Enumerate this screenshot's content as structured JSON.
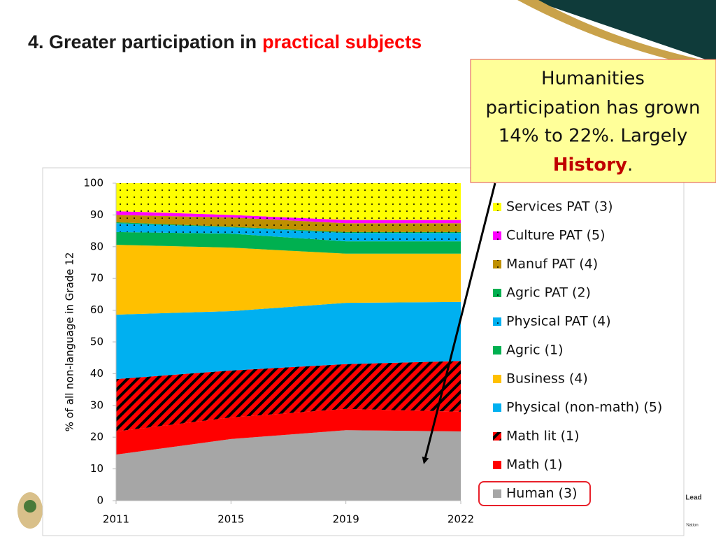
{
  "title": {
    "prefix": "4. Greater participation in",
    "highlight": "practical subjects"
  },
  "callout": {
    "lines": [
      "Humanities",
      "participation has grown",
      "14% to 22%. Largely"
    ],
    "emphasis": "History",
    "end": "."
  },
  "footer": {
    "logo_word": "Lead",
    "logo_sub": "Nation"
  },
  "chart_data": {
    "type": "stacked-area",
    "y_label": "% of all non-language in Grade 12",
    "categories": [
      "2011",
      "2015",
      "2019",
      "2022"
    ],
    "ylim": [
      0,
      100
    ],
    "yticks": [
      0,
      10,
      20,
      30,
      40,
      50,
      60,
      70,
      80,
      90,
      100
    ],
    "highlighted_series": "Human (3)",
    "series": [
      {
        "name": "Human (3)",
        "color": "#a6a6a6",
        "pattern": "solid",
        "values": [
          14.5,
          19.4,
          22.2,
          21.8
        ]
      },
      {
        "name": "Math (1)",
        "color": "#ff0000",
        "pattern": "solid",
        "values": [
          7.3,
          6.8,
          6.7,
          6.2
        ]
      },
      {
        "name": "Math lit (1)",
        "color": "#ff0000",
        "pattern": "hatch",
        "values": [
          16.5,
          14.8,
          14.1,
          16.0
        ]
      },
      {
        "name": "Physical (non-math) (5)",
        "color": "#00b0f0",
        "pattern": "solid",
        "values": [
          20.3,
          18.7,
          19.3,
          18.6
        ]
      },
      {
        "name": "Business (4)",
        "color": "#ffc000",
        "pattern": "solid",
        "values": [
          22.0,
          20.0,
          15.5,
          15.2
        ]
      },
      {
        "name": "Agric (1)",
        "color": "#00b050",
        "pattern": "solid",
        "values": [
          4.0,
          4.4,
          3.9,
          3.9
        ]
      },
      {
        "name": "Physical PAT (4)",
        "color": "#00b0f0",
        "pattern": "dots",
        "values": [
          2.8,
          2.0,
          2.6,
          2.6
        ]
      },
      {
        "name": "Agric PAT (2)",
        "color": "#00b050",
        "pattern": "dots",
        "values": [
          0.3,
          0.2,
          0.3,
          0.3
        ]
      },
      {
        "name": "Manuf PAT (4)",
        "color": "#bf9000",
        "pattern": "dots",
        "values": [
          2.3,
          2.9,
          2.8,
          2.8
        ]
      },
      {
        "name": "Culture PAT (5)",
        "color": "#ff00ff",
        "pattern": "dots",
        "values": [
          1.2,
          0.8,
          1.0,
          1.0
        ]
      },
      {
        "name": "Services PAT (3)",
        "color": "#ffff00",
        "pattern": "dots",
        "values": [
          8.8,
          10.0,
          11.6,
          11.6
        ]
      }
    ]
  }
}
